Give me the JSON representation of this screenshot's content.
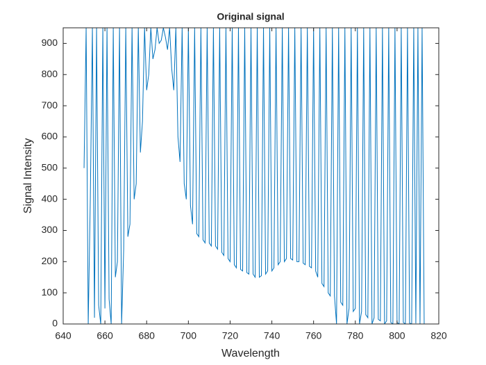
{
  "chart_data": {
    "type": "line",
    "title": "Original signal",
    "xlabel": "Wavelength",
    "ylabel": "Signal Intensity",
    "color": "#0072bd",
    "xlim": [
      640,
      820
    ],
    "xticks": [
      640,
      660,
      680,
      700,
      720,
      740,
      760,
      780,
      800,
      820
    ],
    "ylim": [
      0,
      950
    ],
    "yticks": [
      0,
      100,
      200,
      300,
      400,
      500,
      600,
      700,
      800,
      900
    ],
    "x": [
      650,
      651,
      652,
      653,
      654,
      655,
      656,
      657,
      658,
      659,
      660,
      661,
      662,
      663,
      664,
      665,
      666,
      667,
      668,
      669,
      670,
      671,
      672,
      673,
      674,
      675,
      676,
      677,
      678,
      679,
      680,
      681,
      682,
      683,
      684,
      685,
      686,
      687,
      688,
      689,
      690,
      691,
      692,
      693,
      694,
      695,
      696,
      697,
      698,
      699,
      700,
      701,
      702,
      703,
      704,
      705,
      706,
      707,
      708,
      709,
      710,
      711,
      712,
      713,
      714,
      715,
      716,
      717,
      718,
      719,
      720,
      721,
      722,
      723,
      724,
      725,
      726,
      727,
      728,
      729,
      730,
      731,
      732,
      733,
      734,
      735,
      736,
      737,
      738,
      739,
      740,
      741,
      742,
      743,
      744,
      745,
      746,
      747,
      748,
      749,
      750,
      751,
      752,
      753,
      754,
      755,
      756,
      757,
      758,
      759,
      760,
      761,
      762,
      763,
      764,
      765,
      766,
      767,
      768,
      769,
      770,
      771,
      772,
      773,
      774,
      775,
      776,
      777,
      778,
      779,
      780,
      781,
      782,
      783,
      784,
      785,
      786,
      787,
      788,
      789,
      790,
      791,
      792,
      793,
      794,
      795,
      796,
      797,
      798,
      799,
      800,
      801,
      802,
      803,
      804,
      805,
      806,
      807,
      808,
      809,
      810,
      811,
      812,
      813
    ],
    "values": [
      500,
      950,
      0,
      400,
      950,
      20,
      950,
      60,
      0,
      950,
      50,
      950,
      80,
      0,
      950,
      150,
      200,
      950,
      0,
      240,
      950,
      280,
      320,
      950,
      400,
      450,
      950,
      550,
      650,
      950,
      750,
      800,
      950,
      850,
      880,
      950,
      900,
      910,
      950,
      920,
      880,
      950,
      820,
      750,
      950,
      600,
      520,
      950,
      450,
      400,
      950,
      380,
      320,
      950,
      290,
      280,
      950,
      270,
      260,
      950,
      260,
      250,
      950,
      250,
      240,
      950,
      230,
      220,
      950,
      210,
      200,
      950,
      190,
      180,
      950,
      175,
      170,
      950,
      165,
      160,
      950,
      160,
      150,
      950,
      150,
      155,
      950,
      160,
      170,
      950,
      170,
      180,
      950,
      190,
      200,
      950,
      200,
      210,
      950,
      210,
      205,
      950,
      200,
      200,
      950,
      195,
      190,
      950,
      185,
      180,
      950,
      170,
      150,
      950,
      130,
      120,
      950,
      100,
      90,
      950,
      90,
      0,
      950,
      70,
      60,
      950,
      0,
      50,
      950,
      40,
      50,
      950,
      0,
      40,
      950,
      30,
      20,
      950,
      0,
      20,
      950,
      15,
      10,
      950,
      0,
      10,
      950,
      5,
      0,
      950,
      5,
      0,
      950,
      5,
      0,
      950,
      3,
      0,
      950,
      2,
      950,
      0,
      950,
      0
    ]
  }
}
